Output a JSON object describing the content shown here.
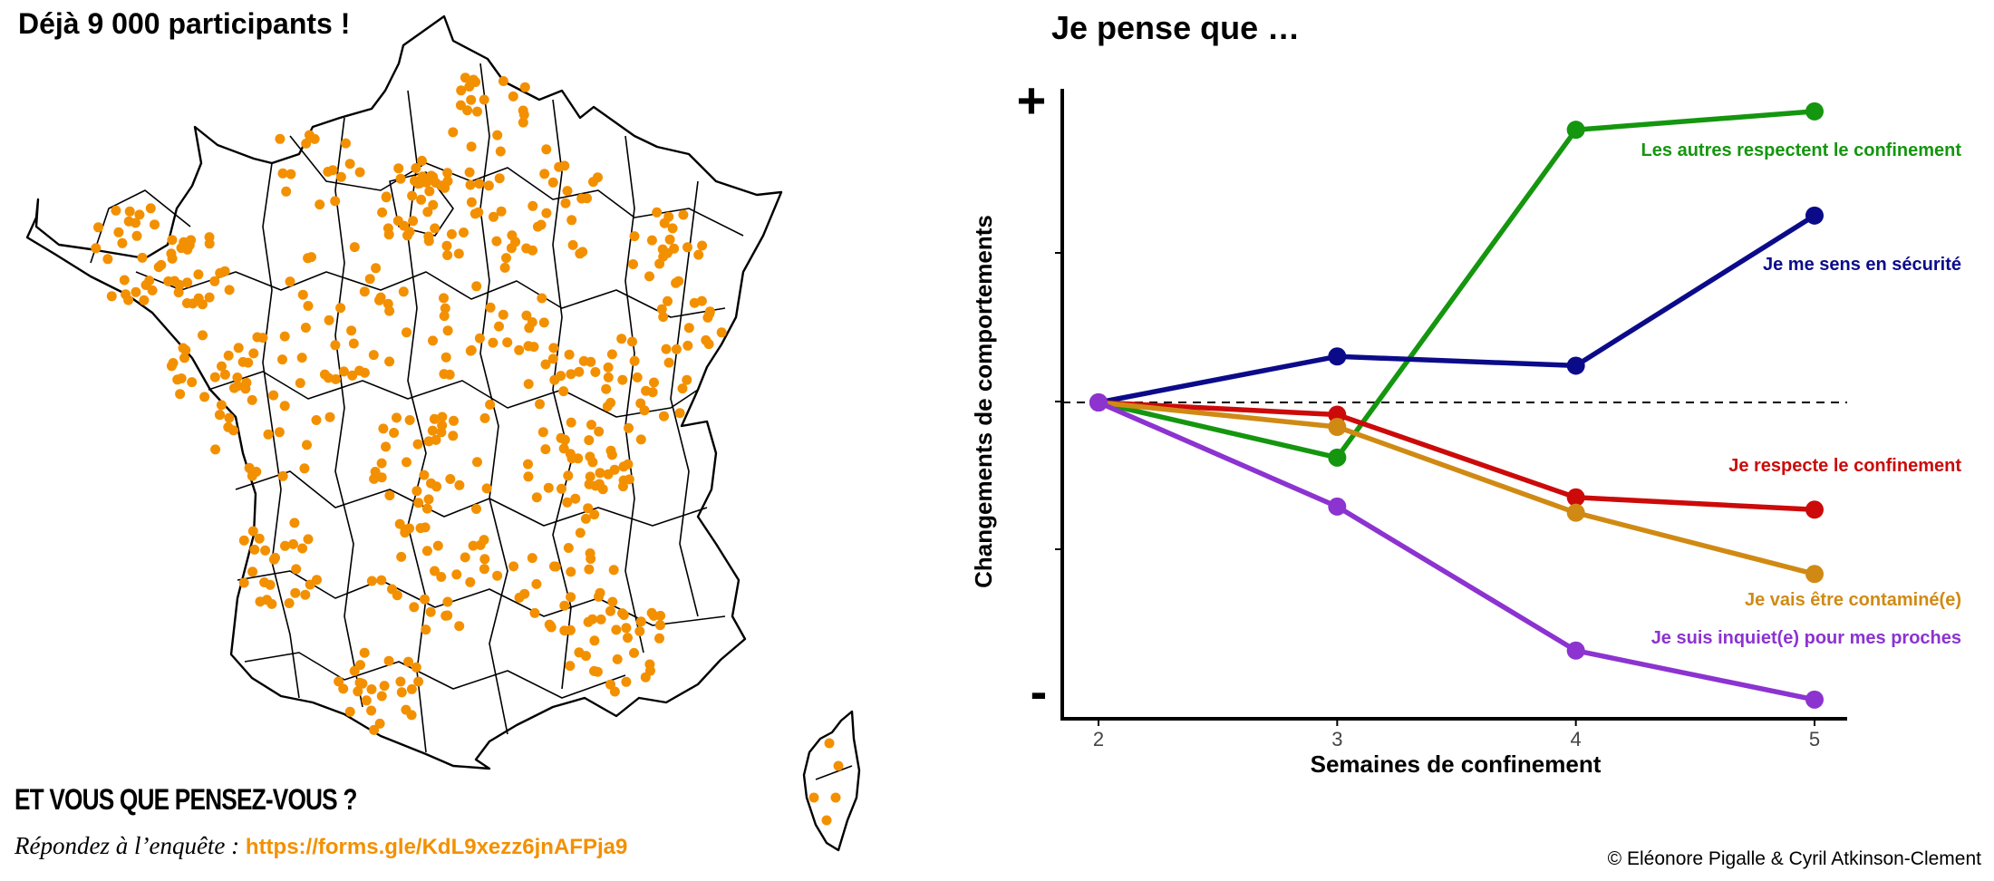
{
  "headline": "Déjà 9 000 participants !",
  "map": {
    "dot_color": "#f39000",
    "border_color": "#000000"
  },
  "cta": {
    "question": "ET VOUS QUE PENSEZ-VOUS ?",
    "reply_label": "Répondez à l’enquête : ",
    "link": "https://forms.gle/KdL9xezz6jnAFPja9",
    "link_color": "#f39000"
  },
  "credit": "© Eléonore Pigalle & Cyril Atkinson-Clement",
  "chart_data": {
    "type": "line",
    "title": "Je pense que …",
    "xlabel": "Semaines de confinement",
    "ylabel": "Changements de comportements",
    "x": [
      2,
      3,
      4,
      5
    ],
    "x_tick_labels": [
      "2",
      "3",
      "4",
      "5"
    ],
    "y_extreme_labels": {
      "top": "+",
      "bottom": "-"
    },
    "ylim": [
      -1,
      1
    ],
    "reference_line": {
      "y": 0,
      "style": "dashed"
    },
    "grid": false,
    "legend": "direct labels at right end of lines",
    "series": [
      {
        "name": "Les autres respectent le confinement",
        "color": "#14960f",
        "values": [
          0,
          -0.18,
          0.89,
          0.95
        ]
      },
      {
        "name": "Je me sens en sécurité",
        "color": "#0b0b8a",
        "values": [
          0,
          0.15,
          0.12,
          0.61
        ]
      },
      {
        "name": "Je respecte le confinement",
        "color": "#cc0a0a",
        "values": [
          0,
          -0.04,
          -0.31,
          -0.35
        ]
      },
      {
        "name": "Je vais être contaminé(e)",
        "color": "#d08a14",
        "values": [
          0,
          -0.08,
          -0.36,
          -0.56
        ]
      },
      {
        "name": "Je suis inquiet(e) pour mes proches",
        "color": "#8c33d0",
        "values": [
          0,
          -0.34,
          -0.81,
          -0.97
        ]
      }
    ]
  }
}
